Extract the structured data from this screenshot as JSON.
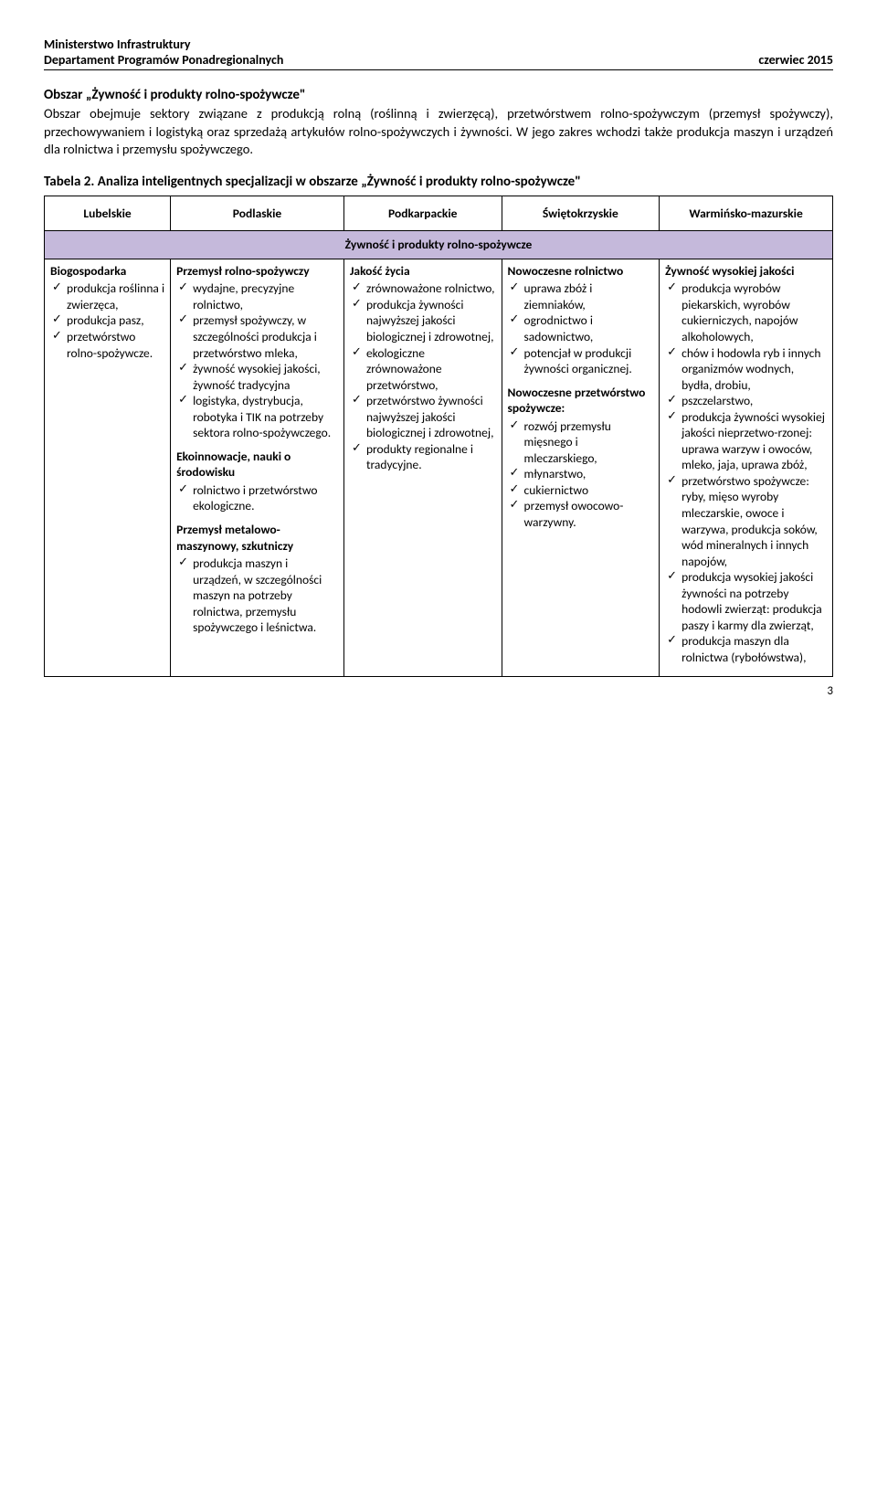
{
  "header": {
    "ministry": "Ministerstwo Infrastruktury",
    "department": "Departament Programów Ponadregionalnych",
    "date": "czerwiec 2015"
  },
  "intro": {
    "title": "Obszar „Żywność i produkty rolno-spożywcze\"",
    "paragraph": "Obszar obejmuje sektory związane z produkcją rolną (roślinną i zwierzęcą), przetwórstwem rolno-spożywczym (przemysł spożywczy), przechowywaniem i logistyką oraz sprzedażą artykułów rolno-spożywczych i żywności. W jego zakres wchodzi także produkcja maszyn i urządzeń dla rolnictwa i przemysłu spożywczego."
  },
  "table_title": "Tabela 2. Analiza inteligentnych specjalizacji w obszarze „Żywność i produkty rolno-spożywcze\"",
  "columns": {
    "c1": "Lubelskie",
    "c2": "Podlaskie",
    "c3": "Podkarpackie",
    "c4": "Świętokrzyskie",
    "c5": "Warmińsko-mazurskie"
  },
  "band": "Żywność i produkty rolno-spożywcze",
  "col1": {
    "s1_title": "Biogospodarka",
    "s1_items": [
      "produkcja roślinna i zwierzęca,",
      "produkcja pasz,",
      "przetwórstwo rolno-spożywcze."
    ]
  },
  "col2": {
    "s1_title": "Przemysł rolno-spożywczy",
    "s1_items": [
      "wydajne, precyzyjne rolnictwo,",
      "przemysł spożywczy, w szczególności produkcja i przetwórstwo mleka,",
      "żywność wysokiej jakości, żywność tradycyjna",
      "logistyka, dystrybucja, robotyka i TIK na potrzeby sektora rolno-spożywczego."
    ],
    "s2_title": "Ekoinnowacje, nauki o środowisku",
    "s2_items": [
      "rolnictwo i przetwórstwo ekologiczne."
    ],
    "s3_title": "Przemysł metalowo-maszynowy, szkutniczy",
    "s3_items": [
      "produkcja maszyn i urządzeń, w szczególności maszyn na potrzeby rolnictwa, przemysłu spożywczego i leśnictwa."
    ]
  },
  "col3": {
    "s1_title": "Jakość życia",
    "s1_items": [
      "zrównoważone rolnictwo,",
      "produkcja żywności najwyższej jakości biologicznej i zdrowotnej,",
      "ekologiczne zrównoważone przetwórstwo,",
      "przetwórstwo żywności najwyższej jakości biologicznej i zdrowotnej,",
      "produkty regionalne i tradycyjne."
    ]
  },
  "col4": {
    "s1_title": "Nowoczesne rolnictwo",
    "s1_items": [
      "uprawa zbóż i ziemniaków,",
      "ogrodnictwo i sadownictwo,",
      "potencjał w produkcji żywności organicznej."
    ],
    "s2_title": "Nowoczesne przetwórstwo spożywcze:",
    "s2_items": [
      "rozwój przemysłu mięsnego i mleczarskiego,",
      "młynarstwo,",
      "cukiernictwo",
      "przemysł owocowo-warzywny."
    ]
  },
  "col5": {
    "s1_title": "Żywność wysokiej jakości",
    "s1_items": [
      "produkcja wyrobów piekarskich, wyrobów cukierniczych, napojów alkoholowych,",
      "chów i hodowla ryb i innych organizmów wodnych, bydła, drobiu,",
      "pszczelarstwo,",
      "produkcja żywności wysokiej jakości nieprzetwo-rzonej: uprawa warzyw i owoców, mleko, jaja, uprawa zbóż,",
      "przetwórstwo spożywcze: ryby, mięso wyroby mleczarskie, owoce i warzywa, produkcja soków, wód mineralnych i innych napojów,",
      "produkcja wysokiej jakości żywności na potrzeby hodowli zwierząt: produkcja paszy i karmy dla zwierząt,",
      "produkcja maszyn dla rolnictwa (rybołówstwa),"
    ]
  },
  "page_number": "3",
  "style": {
    "band_bg": "#c5b9db",
    "font_family": "Calibri, Arial, sans-serif"
  }
}
